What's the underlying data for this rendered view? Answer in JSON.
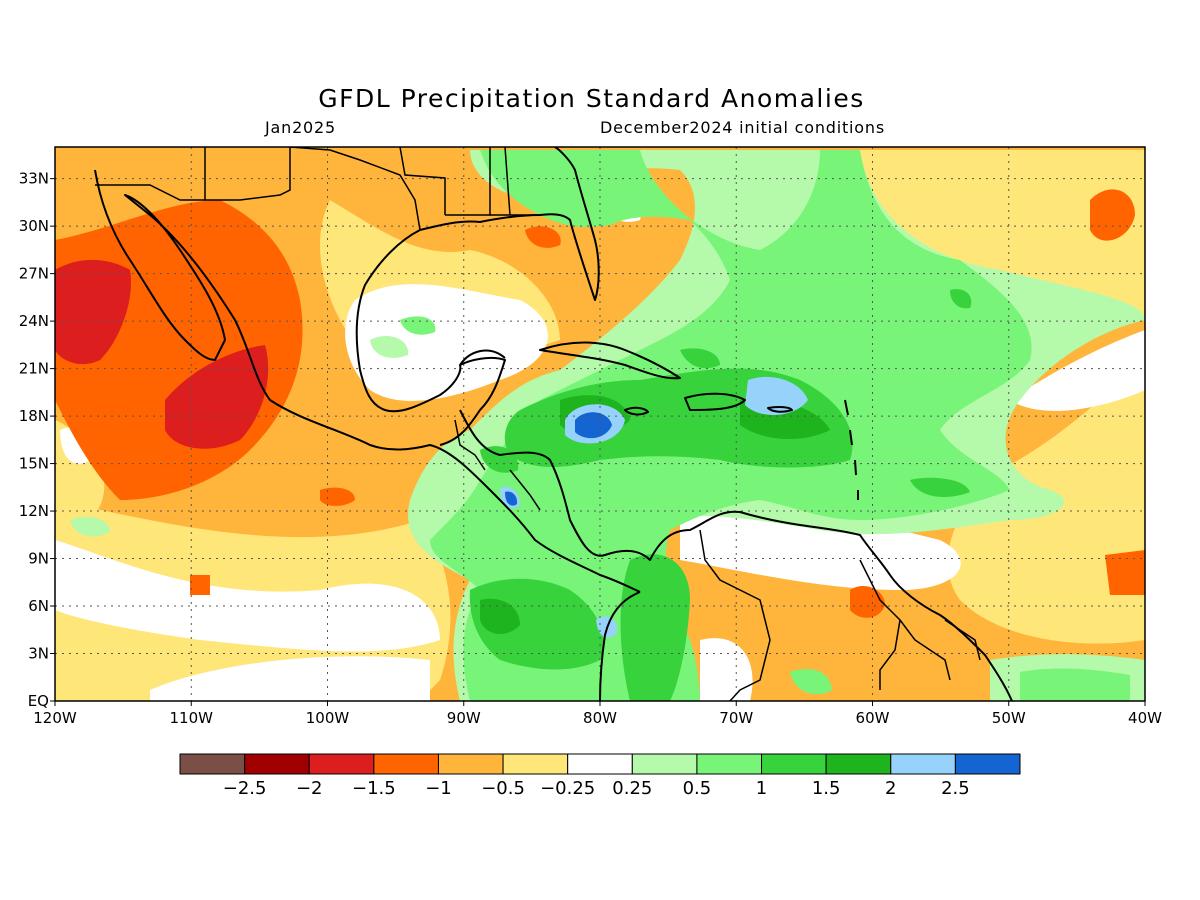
{
  "title": "GFDL Precipitation Standard Anomalies",
  "subtitle_left": "Jan2025",
  "subtitle_right": "December2024 initial conditions",
  "map": {
    "lon_range": [
      -120,
      -40
    ],
    "lat_range": [
      0,
      35
    ],
    "lon_ticks": [
      {
        "value": -120,
        "label": "120W"
      },
      {
        "value": -110,
        "label": "110W"
      },
      {
        "value": -100,
        "label": "100W"
      },
      {
        "value": -90,
        "label": "90W"
      },
      {
        "value": -80,
        "label": "80W"
      },
      {
        "value": -70,
        "label": "70W"
      },
      {
        "value": -60,
        "label": "60W"
      },
      {
        "value": -50,
        "label": "50W"
      },
      {
        "value": -40,
        "label": "40W"
      }
    ],
    "lat_ticks": [
      {
        "value": 0,
        "label": "EQ"
      },
      {
        "value": 3,
        "label": "3N"
      },
      {
        "value": 6,
        "label": "6N"
      },
      {
        "value": 9,
        "label": "9N"
      },
      {
        "value": 12,
        "label": "12N"
      },
      {
        "value": 15,
        "label": "15N"
      },
      {
        "value": 18,
        "label": "18N"
      },
      {
        "value": 21,
        "label": "21N"
      },
      {
        "value": 24,
        "label": "24N"
      },
      {
        "value": 27,
        "label": "27N"
      },
      {
        "value": 30,
        "label": "30N"
      },
      {
        "value": 33,
        "label": "33N"
      }
    ],
    "grid": "dotted"
  },
  "colorbar": {
    "colors": [
      "#7a5046",
      "#a00000",
      "#dc1e1e",
      "#ff6400",
      "#ffb43c",
      "#ffe678",
      "#ffffff",
      "#b4faaa",
      "#78f578",
      "#37d23c",
      "#1eb41e",
      "#96d2fa",
      "#1464d2"
    ],
    "labels": [
      "−2.5",
      "−2",
      "−1.5",
      "−1",
      "−0.5",
      "−0.25",
      "0.25",
      "0.5",
      "1",
      "1.5",
      "2",
      "2.5"
    ]
  },
  "palette": {
    "dry_strong": "#dc1e1e",
    "dry_moderate": "#ff6400",
    "dry_weak": "#ffb43c",
    "dry_slight": "#ffe678",
    "neutral": "#ffffff",
    "wet_slight": "#b4faaa",
    "wet_weak": "#78f578",
    "wet_moderate": "#37d23c",
    "wet_strong": "#1eb41e",
    "wet_very_strong": "#96d2fa",
    "wet_extreme": "#1464d2",
    "dry_extreme": "#a00000"
  }
}
